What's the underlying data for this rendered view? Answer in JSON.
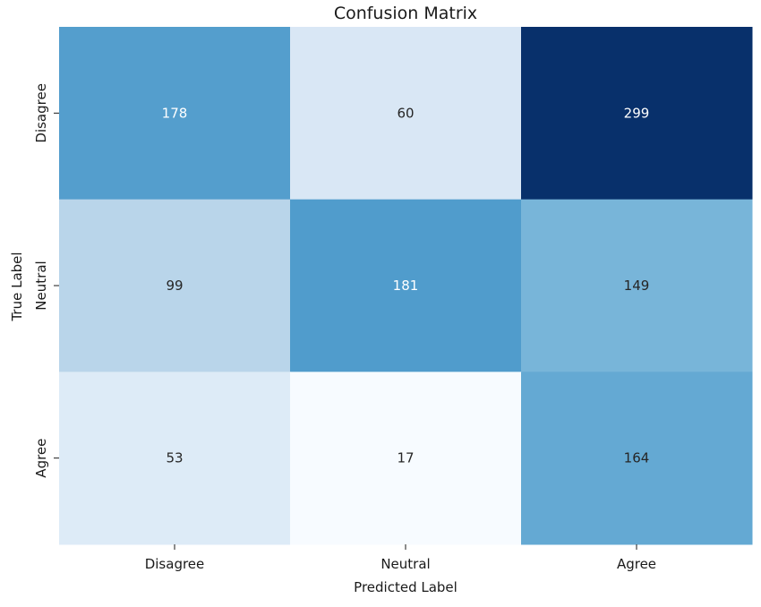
{
  "chart_data": {
    "type": "heatmap",
    "title": "Confusion Matrix",
    "xlabel": "Predicted Label",
    "ylabel": "True Label",
    "x_categories": [
      "Disagree",
      "Neutral",
      "Agree"
    ],
    "y_categories": [
      "Disagree",
      "Neutral",
      "Agree"
    ],
    "values": [
      [
        178,
        60,
        299
      ],
      [
        99,
        181,
        149
      ],
      [
        53,
        17,
        164
      ]
    ],
    "colormap": "Blues",
    "color_range": [
      17,
      299
    ],
    "colorbar": false,
    "annotate": true
  }
}
